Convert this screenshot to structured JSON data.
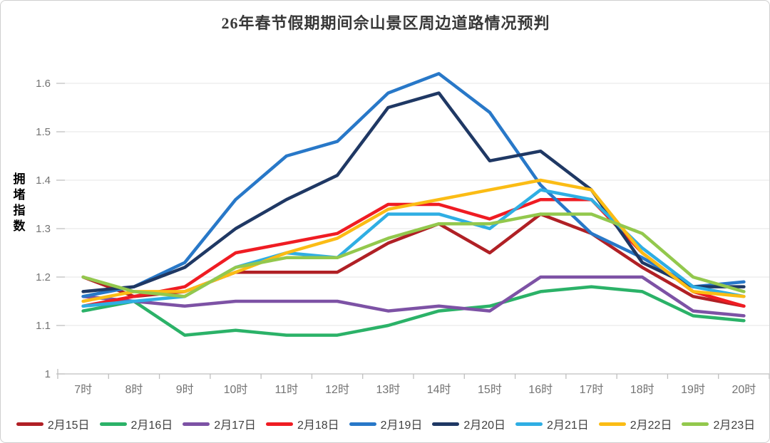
{
  "chart_data": {
    "type": "line",
    "title": "26年春节假期期间佘山景区周边道路情况预判",
    "ylabel": "拥堵指数",
    "xlabel": "",
    "categories": [
      "7时",
      "8时",
      "9时",
      "10时",
      "11时",
      "12时",
      "13时",
      "14时",
      "15时",
      "16时",
      "17时",
      "18时",
      "19时",
      "20时"
    ],
    "ylim": [
      1,
      1.65
    ],
    "yticks": [
      "1",
      "1.1",
      "1.2",
      "1.3",
      "1.4",
      "1.5",
      "1.6"
    ],
    "ytick_values": [
      1,
      1.1,
      1.2,
      1.3,
      1.4,
      1.5,
      1.6
    ],
    "grid": true,
    "legend_position": "bottom",
    "series": [
      {
        "name": "2月15日",
        "color": "#B02025",
        "values": [
          1.2,
          1.16,
          1.17,
          1.21,
          1.21,
          1.21,
          1.27,
          1.31,
          1.25,
          1.33,
          1.29,
          1.22,
          1.16,
          1.14
        ]
      },
      {
        "name": "2月16日",
        "color": "#2BB268",
        "values": [
          1.13,
          1.15,
          1.08,
          1.09,
          1.08,
          1.08,
          1.1,
          1.13,
          1.14,
          1.17,
          1.18,
          1.17,
          1.12,
          1.11
        ]
      },
      {
        "name": "2月17日",
        "color": "#7D52A5",
        "values": [
          1.16,
          1.15,
          1.14,
          1.15,
          1.15,
          1.15,
          1.13,
          1.14,
          1.13,
          1.2,
          1.2,
          1.2,
          1.13,
          1.12
        ]
      },
      {
        "name": "2月18日",
        "color": "#EF1C23",
        "values": [
          1.14,
          1.16,
          1.18,
          1.25,
          1.27,
          1.29,
          1.35,
          1.35,
          1.32,
          1.36,
          1.36,
          1.25,
          1.17,
          1.14
        ]
      },
      {
        "name": "2月19日",
        "color": "#2878C8",
        "values": [
          1.16,
          1.18,
          1.23,
          1.36,
          1.45,
          1.48,
          1.58,
          1.62,
          1.54,
          1.39,
          1.29,
          1.24,
          1.18,
          1.19
        ]
      },
      {
        "name": "2月20日",
        "color": "#1F3864",
        "values": [
          1.17,
          1.18,
          1.22,
          1.3,
          1.36,
          1.41,
          1.55,
          1.58,
          1.44,
          1.46,
          1.38,
          1.23,
          1.18,
          1.18
        ]
      },
      {
        "name": "2月21日",
        "color": "#2FAEE3",
        "values": [
          1.14,
          1.15,
          1.16,
          1.22,
          1.25,
          1.24,
          1.33,
          1.33,
          1.3,
          1.38,
          1.36,
          1.26,
          1.18,
          1.16
        ]
      },
      {
        "name": "2月22日",
        "color": "#FBBC15",
        "values": [
          1.15,
          1.17,
          1.17,
          1.21,
          1.25,
          1.28,
          1.34,
          1.36,
          1.38,
          1.4,
          1.38,
          1.25,
          1.17,
          1.16
        ]
      },
      {
        "name": "2月23日",
        "color": "#93C84D",
        "values": [
          1.2,
          1.17,
          1.16,
          1.22,
          1.24,
          1.24,
          1.28,
          1.31,
          1.31,
          1.33,
          1.33,
          1.29,
          1.2,
          1.17
        ]
      }
    ],
    "axis_color": "#BFBFBF",
    "gridline_color": "#E4E4E4",
    "tick_label_color": "#737373"
  }
}
